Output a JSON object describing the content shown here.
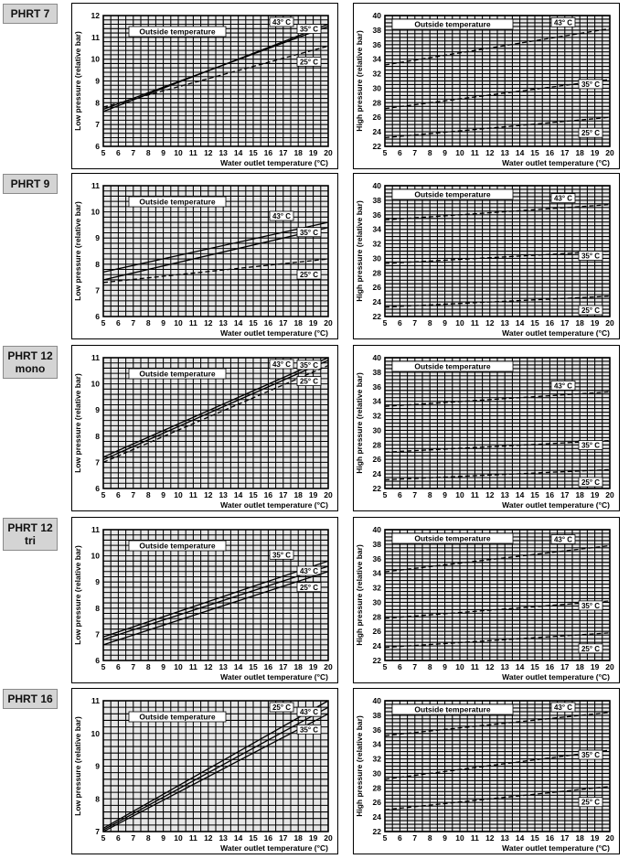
{
  "rows": [
    {
      "label": "PHRT 7",
      "low": {
        "type": "line",
        "ylabel": "Low pressure (relative bar)",
        "xlabel": "Water outlet temperature  (°C)",
        "legend_title": "Outside temperature",
        "xlim": [
          5,
          20
        ],
        "ylim": [
          6,
          12
        ],
        "xticks": [
          5,
          6,
          7,
          8,
          9,
          10,
          11,
          12,
          13,
          14,
          15,
          16,
          17,
          18,
          19,
          20
        ],
        "yticks": [
          6,
          7,
          8,
          9,
          10,
          11,
          12
        ],
        "series": [
          {
            "name": "43° C",
            "x": [
              5,
              20
            ],
            "y": [
              7.7,
              11.5
            ],
            "dash": false
          },
          {
            "name": "35° C",
            "x": [
              5,
              20
            ],
            "y": [
              7.6,
              11.6
            ],
            "dash": false
          },
          {
            "name": "25° C",
            "x": [
              5,
              20
            ],
            "y": [
              7.8,
              10.6
            ],
            "dash": true
          }
        ]
      },
      "high": {
        "type": "line",
        "ylabel": "High pressure (relative bar)",
        "xlabel": "Water outlet temperature  (°C)",
        "legend_title": "Outside temperature",
        "xlim": [
          5,
          20
        ],
        "ylim": [
          22,
          40
        ],
        "xticks": [
          5,
          6,
          7,
          8,
          9,
          10,
          11,
          12,
          13,
          14,
          15,
          16,
          17,
          18,
          19,
          20
        ],
        "yticks": [
          22,
          24,
          26,
          28,
          30,
          32,
          34,
          36,
          38,
          40
        ],
        "series": [
          {
            "name": "43° C",
            "x": [
              5,
              20
            ],
            "y": [
              33.2,
              38.2
            ],
            "dash": true
          },
          {
            "name": "35° C",
            "x": [
              5,
              20
            ],
            "y": [
              27.2,
              31.2
            ],
            "dash": true
          },
          {
            "name": "25° C",
            "x": [
              5,
              20
            ],
            "y": [
              23.2,
              26.0
            ],
            "dash": true
          }
        ]
      }
    },
    {
      "label": "PHRT 9",
      "low": {
        "type": "line",
        "ylabel": "Low pressure (relative bar)",
        "xlabel": "Water outlet temperature  (°C)",
        "legend_title": "Outside temperature",
        "xlim": [
          5,
          20
        ],
        "ylim": [
          6,
          11
        ],
        "xticks": [
          5,
          6,
          7,
          8,
          9,
          10,
          11,
          12,
          13,
          14,
          15,
          16,
          17,
          18,
          19,
          20
        ],
        "yticks": [
          6,
          7,
          8,
          9,
          10,
          11
        ],
        "series": [
          {
            "name": "43° C",
            "x": [
              5,
              20
            ],
            "y": [
              7.7,
              9.6
            ],
            "dash": false
          },
          {
            "name": "35° C",
            "x": [
              5,
              20
            ],
            "y": [
              7.4,
              9.4
            ],
            "dash": false
          },
          {
            "name": "25° C",
            "x": [
              5,
              20
            ],
            "y": [
              7.3,
              8.2
            ],
            "dash": true
          }
        ]
      },
      "high": {
        "type": "line",
        "ylabel": "High pressure (relative bar)",
        "xlabel": "Water outlet temperature  (°C)",
        "legend_title": "Outside temperature",
        "xlim": [
          5,
          20
        ],
        "ylim": [
          22,
          40
        ],
        "xticks": [
          5,
          6,
          7,
          8,
          9,
          10,
          11,
          12,
          13,
          14,
          15,
          16,
          17,
          18,
          19,
          20
        ],
        "yticks": [
          22,
          24,
          26,
          28,
          30,
          32,
          34,
          36,
          38,
          40
        ],
        "series": [
          {
            "name": "43° C",
            "x": [
              5,
              20
            ],
            "y": [
              35.3,
              37.4
            ],
            "dash": true
          },
          {
            "name": "35° C",
            "x": [
              5,
              20
            ],
            "y": [
              29.3,
              31.0
            ],
            "dash": true
          },
          {
            "name": "25° C",
            "x": [
              5,
              20
            ],
            "y": [
              23.3,
              24.8
            ],
            "dash": true
          }
        ]
      }
    },
    {
      "label": "PHRT 12\nmono",
      "low": {
        "type": "line",
        "ylabel": "Low pressure (relative bar)",
        "xlabel": "Water outlet temperature  (°C)",
        "legend_title": "Outside temperature",
        "xlim": [
          5,
          20
        ],
        "ylim": [
          6,
          11
        ],
        "xticks": [
          5,
          6,
          7,
          8,
          9,
          10,
          11,
          12,
          13,
          14,
          15,
          16,
          17,
          18,
          19,
          20
        ],
        "yticks": [
          6,
          7,
          8,
          9,
          10,
          11
        ],
        "series": [
          {
            "name": "43° C",
            "x": [
              5,
              20
            ],
            "y": [
              7.2,
              11.0
            ],
            "dash": false
          },
          {
            "name": "35° C",
            "x": [
              5,
              20
            ],
            "y": [
              7.1,
              10.9
            ],
            "dash": false
          },
          {
            "name": "25° C",
            "x": [
              5,
              20
            ],
            "y": [
              7.0,
              10.7
            ],
            "dash": true
          }
        ]
      },
      "high": {
        "type": "line",
        "ylabel": "High pressure (relative bar)",
        "xlabel": "Water outlet temperature  (°C)",
        "legend_title": "Outside temperature",
        "xlim": [
          5,
          20
        ],
        "ylim": [
          22,
          40
        ],
        "xticks": [
          5,
          6,
          7,
          8,
          9,
          10,
          11,
          12,
          13,
          14,
          15,
          16,
          17,
          18,
          19,
          20
        ],
        "yticks": [
          22,
          24,
          26,
          28,
          30,
          32,
          34,
          36,
          38,
          40
        ],
        "series": [
          {
            "name": "43° C",
            "x": [
              5,
              20
            ],
            "y": [
              33.3,
              35.3
            ],
            "dash": true
          },
          {
            "name": "35° C",
            "x": [
              5,
              20
            ],
            "y": [
              27.0,
              28.6
            ],
            "dash": true
          },
          {
            "name": "25° C",
            "x": [
              5,
              20
            ],
            "y": [
              23.2,
              24.6
            ],
            "dash": true
          }
        ]
      }
    },
    {
      "label": "PHRT 12\ntri",
      "low": {
        "type": "line",
        "ylabel": "Low pressure (relative bar)",
        "xlabel": "Water outlet temperature  (°C)",
        "legend_title": "Outside temperature",
        "xlim": [
          5,
          20
        ],
        "ylim": [
          6,
          11
        ],
        "xticks": [
          5,
          6,
          7,
          8,
          9,
          10,
          11,
          12,
          13,
          14,
          15,
          16,
          17,
          18,
          19,
          20
        ],
        "yticks": [
          6,
          7,
          8,
          9,
          10,
          11
        ],
        "series": [
          {
            "name": "35° C",
            "x": [
              5,
              20
            ],
            "y": [
              6.9,
              9.8
            ],
            "dash": false
          },
          {
            "name": "43° C",
            "x": [
              5,
              20
            ],
            "y": [
              6.8,
              9.6
            ],
            "dash": false
          },
          {
            "name": "25° C",
            "x": [
              5,
              20
            ],
            "y": [
              6.6,
              9.4
            ],
            "dash": false
          }
        ]
      },
      "high": {
        "type": "line",
        "ylabel": "High pressure (relative bar)",
        "xlabel": "Water outlet temperature  (°C)",
        "legend_title": "Outside temperature",
        "xlim": [
          5,
          20
        ],
        "ylim": [
          22,
          40
        ],
        "xticks": [
          5,
          6,
          7,
          8,
          9,
          10,
          11,
          12,
          13,
          14,
          15,
          16,
          17,
          18,
          19,
          20
        ],
        "yticks": [
          22,
          24,
          26,
          28,
          30,
          32,
          34,
          36,
          38,
          40
        ],
        "series": [
          {
            "name": "43° C",
            "x": [
              5,
              20
            ],
            "y": [
              34.2,
              37.8
            ],
            "dash": true
          },
          {
            "name": "35° C",
            "x": [
              5,
              20
            ],
            "y": [
              27.8,
              30.2
            ],
            "dash": true
          },
          {
            "name": "25° C",
            "x": [
              5,
              20
            ],
            "y": [
              23.8,
              25.8
            ],
            "dash": true
          }
        ]
      }
    },
    {
      "label": "PHRT 16",
      "low": {
        "type": "line",
        "ylabel": "Low pressure (relative bar)",
        "xlabel": "Water outlet temperature  (°C)",
        "legend_title": "Outside temperature",
        "xlim": [
          5,
          20
        ],
        "ylim": [
          7,
          11
        ],
        "xticks": [
          5,
          6,
          7,
          8,
          9,
          10,
          11,
          12,
          13,
          14,
          15,
          16,
          17,
          18,
          19,
          20
        ],
        "yticks": [
          7,
          8,
          9,
          10,
          11
        ],
        "series": [
          {
            "name": "25° C",
            "x": [
              5,
              20
            ],
            "y": [
              7.1,
              11.0
            ],
            "dash": false
          },
          {
            "name": "43° C",
            "x": [
              5,
              20
            ],
            "y": [
              7.05,
              10.8
            ],
            "dash": false
          },
          {
            "name": "35° C",
            "x": [
              5,
              20
            ],
            "y": [
              7.0,
              10.6
            ],
            "dash": false
          }
        ]
      },
      "high": {
        "type": "line",
        "ylabel": "High pressure (relative bar)",
        "xlabel": "Water outlet temperature  (°C)",
        "legend_title": "Outside temperature",
        "xlim": [
          5,
          20
        ],
        "ylim": [
          22,
          40
        ],
        "xticks": [
          5,
          6,
          7,
          8,
          9,
          10,
          11,
          12,
          13,
          14,
          15,
          16,
          17,
          18,
          19,
          20
        ],
        "yticks": [
          22,
          24,
          26,
          28,
          30,
          32,
          34,
          36,
          38,
          40
        ],
        "series": [
          {
            "name": "43° C",
            "x": [
              5,
              20
            ],
            "y": [
              35.2,
              38.4
            ],
            "dash": true
          },
          {
            "name": "35° C",
            "x": [
              5,
              20
            ],
            "y": [
              29.2,
              33.2
            ],
            "dash": true
          },
          {
            "name": "25° C",
            "x": [
              5,
              20
            ],
            "y": [
              25.0,
              28.2
            ],
            "dash": true
          }
        ]
      }
    }
  ]
}
